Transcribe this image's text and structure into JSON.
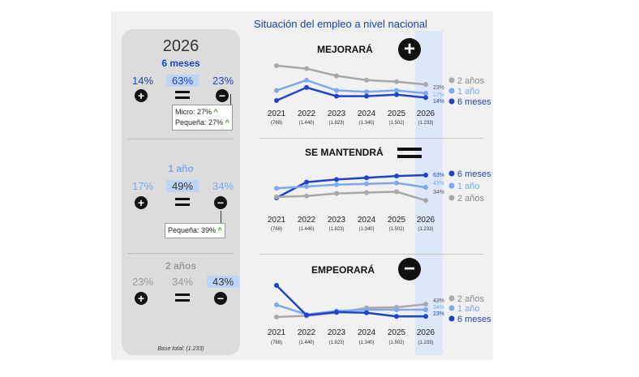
{
  "title": "Situación del empleo a nivel nacional",
  "colors": {
    "six_months": "#1e44c8",
    "one_year": "#7ea7ee",
    "two_years": "#a8a8a8"
  },
  "left": {
    "year": "2026",
    "base": "Base total: (1.233)",
    "blocks": [
      {
        "period": "6 meses",
        "better": "14%",
        "same": "63%",
        "worse": "23%",
        "callout": [
          "Micro: 27%",
          "Pequeña: 27%"
        ]
      },
      {
        "period": "1 año",
        "better": "17%",
        "same": "49%",
        "worse": "34%",
        "callout": [
          "Pequeña: 39%"
        ]
      },
      {
        "period": "2 años",
        "better": "23%",
        "same": "34%",
        "worse": "43%",
        "callout": []
      }
    ]
  },
  "chart_data": [
    {
      "type": "line",
      "title": "MEJORARÁ",
      "categories": [
        "2021",
        "2022",
        "2023",
        "2024",
        "2025",
        "2026"
      ],
      "sublabels": [
        "(768)",
        "(1.440)",
        "(1.823)",
        "(1.340)",
        "(1.502)",
        "(1.233)"
      ],
      "series": [
        {
          "name": "2 años",
          "values": [
            36,
            34,
            29,
            26,
            25,
            23
          ]
        },
        {
          "name": "1 año",
          "values": [
            19,
            26,
            19,
            18,
            19,
            17
          ]
        },
        {
          "name": "6 meses",
          "values": [
            12,
            21,
            15,
            15,
            16,
            14
          ]
        }
      ],
      "end_labels": [
        "23%",
        "17%",
        "14%"
      ],
      "legend_order": [
        "2 años",
        "1 año",
        "6 meses"
      ]
    },
    {
      "type": "line",
      "title": "SE MANTENDRÁ",
      "categories": [
        "2021",
        "2022",
        "2023",
        "2024",
        "2025",
        "2026"
      ],
      "sublabels": [
        "(768)",
        "(1.440)",
        "(1.823)",
        "(1.340)",
        "(1.502)",
        "(1.233)"
      ],
      "series": [
        {
          "name": "6 meses",
          "values": [
            37,
            55,
            58,
            60,
            62,
            63
          ]
        },
        {
          "name": "1 año",
          "values": [
            48,
            50,
            52,
            53,
            54,
            49
          ]
        },
        {
          "name": "2 años",
          "values": [
            38,
            39,
            42,
            43,
            44,
            34
          ]
        }
      ],
      "end_labels": [
        "63%",
        "49%",
        "34%"
      ],
      "legend_order": [
        "6 meses",
        "1 año",
        "2 años"
      ]
    },
    {
      "type": "line",
      "title": "EMPEORARÁ",
      "categories": [
        "2021",
        "2022",
        "2023",
        "2024",
        "2025",
        "2026"
      ],
      "sublabels": [
        "(768)",
        "(1.440)",
        "(1.823)",
        "(1.340)",
        "(1.502)",
        "(1.233)"
      ],
      "series": [
        {
          "name": "2 años",
          "values": [
            22,
            24,
            29,
            37,
            38,
            43
          ]
        },
        {
          "name": "1 año",
          "values": [
            42,
            26,
            32,
            34,
            34,
            34
          ]
        },
        {
          "name": "6 meses",
          "values": [
            74,
            25,
            30,
            29,
            23,
            23
          ]
        }
      ],
      "end_labels": [
        "43%",
        "34%",
        "23%"
      ],
      "legend_order": [
        "2 años",
        "1 año",
        "6 meses"
      ]
    }
  ]
}
